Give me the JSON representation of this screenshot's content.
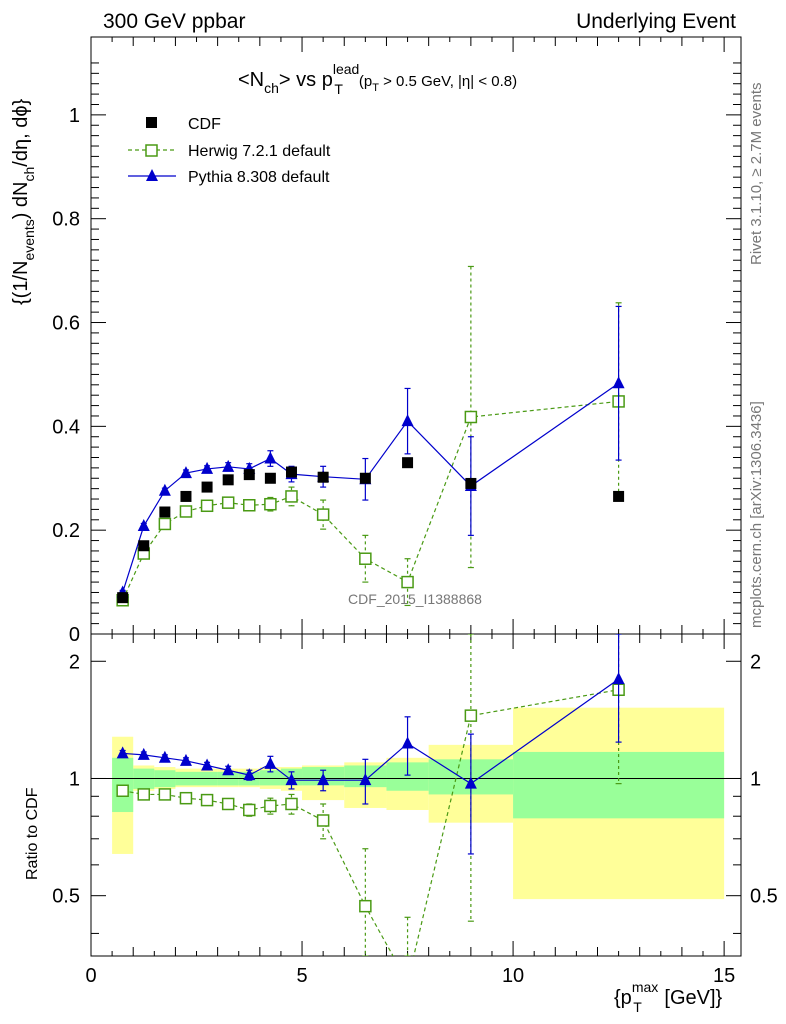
{
  "header": {
    "left": "300 GeV ppbar",
    "right": "Underlying Event"
  },
  "side_labels": {
    "rivet": "Rivet 3.1.10, ≥ 2.7M events",
    "mcplots": "mcplots.cern.ch [arXiv:1306.3436]"
  },
  "watermark": "CDF_2015_I1388868",
  "title": {
    "prefix": "<N",
    "ch_sub": "ch",
    "vs": "> vs p",
    "sup": "lead",
    "sub": "T",
    "cut_open": "(p",
    "cut_sub": "T",
    "cut_rest": " > 0.5 GeV, |η| < 0.8)"
  },
  "ylabel_main": {
    "p1": "{(1/N",
    "s1": "events",
    "p2": ") dN",
    "s2": "ch",
    "p3": "/dη, dϕ}"
  },
  "ylabel_ratio": "Ratio to CDF",
  "xlabel": {
    "p1": "{p",
    "sup": "max",
    "sub": "T",
    "p2": " [GeV]}"
  },
  "chart_data": {
    "type": "scatter",
    "x_range": [
      0,
      15.4
    ],
    "x_ticks": [
      0,
      5,
      10,
      15
    ],
    "main": {
      "y_range": [
        0,
        1.15
      ],
      "y_ticks": [
        0.2,
        0.4,
        0.6,
        0.8,
        1
      ]
    },
    "ratio": {
      "y_range": [
        0.35,
        2.35
      ],
      "y_ticks": [
        0.5,
        1,
        2
      ],
      "reference_line": 1
    },
    "legend": {
      "position": "top-left"
    },
    "series": [
      {
        "name": "CDF",
        "color": "#000000",
        "marker": "filled-square",
        "line": "none",
        "x": [
          0.75,
          1.25,
          1.75,
          2.25,
          2.75,
          3.25,
          3.75,
          4.25,
          4.75,
          5.5,
          6.5,
          7.5,
          9.0,
          12.5
        ],
        "y": [
          0.07,
          0.17,
          0.235,
          0.265,
          0.283,
          0.297,
          0.307,
          0.3,
          0.312,
          0.302,
          0.3,
          0.33,
          0.29,
          0.265
        ]
      },
      {
        "name": "Herwig 7.2.1 default",
        "color": "#4a9a14",
        "marker": "open-square",
        "line": "dashed",
        "x": [
          0.75,
          1.25,
          1.75,
          2.25,
          2.75,
          3.25,
          3.75,
          4.25,
          4.75,
          5.5,
          6.5,
          7.5,
          9.0,
          12.5
        ],
        "y": [
          0.065,
          0.155,
          0.212,
          0.236,
          0.247,
          0.253,
          0.248,
          0.25,
          0.265,
          0.23,
          0.145,
          0.1,
          0.418,
          0.448
        ],
        "err": [
          0.005,
          0.006,
          0.006,
          0.006,
          0.006,
          0.008,
          0.01,
          0.013,
          0.018,
          0.028,
          0.045,
          0.045,
          0.29,
          0.19
        ],
        "ratio": [
          0.93,
          0.91,
          0.91,
          0.89,
          0.88,
          0.86,
          0.83,
          0.85,
          0.86,
          0.78,
          0.47,
          0.3,
          1.45,
          1.69
        ],
        "ratio_err": [
          0.02,
          0.02,
          0.02,
          0.02,
          0.02,
          0.025,
          0.03,
          0.04,
          0.05,
          0.08,
          0.19,
          0.14,
          1.02,
          0.72
        ]
      },
      {
        "name": "Pythia 8.308 default",
        "color": "#0000cc",
        "marker": "filled-triangle",
        "line": "solid",
        "x": [
          0.75,
          1.25,
          1.75,
          2.25,
          2.75,
          3.25,
          3.75,
          4.25,
          4.75,
          5.5,
          6.5,
          7.5,
          9.0,
          12.5
        ],
        "y": [
          0.08,
          0.208,
          0.276,
          0.31,
          0.318,
          0.322,
          0.318,
          0.338,
          0.308,
          0.303,
          0.298,
          0.41,
          0.285,
          0.483
        ],
        "err": [
          0.004,
          0.005,
          0.005,
          0.006,
          0.006,
          0.008,
          0.01,
          0.015,
          0.015,
          0.02,
          0.04,
          0.063,
          0.095,
          0.148
        ],
        "ratio": [
          1.16,
          1.15,
          1.13,
          1.11,
          1.08,
          1.05,
          1.02,
          1.09,
          0.99,
          0.99,
          0.99,
          1.23,
          0.97,
          1.8
        ],
        "ratio_err": [
          0.02,
          0.02,
          0.02,
          0.02,
          0.02,
          0.025,
          0.03,
          0.05,
          0.05,
          0.06,
          0.13,
          0.21,
          0.33,
          0.56
        ]
      }
    ],
    "uncertainty_bands": {
      "x_edges": [
        0.5,
        1.0,
        1.5,
        2.0,
        2.5,
        3.0,
        3.5,
        4.0,
        4.5,
        5.0,
        6.0,
        7.0,
        8.0,
        10.0,
        15.0
      ],
      "green_lo": [
        0.82,
        0.94,
        0.95,
        0.96,
        0.96,
        0.96,
        0.96,
        0.96,
        0.96,
        0.96,
        0.95,
        0.93,
        0.91,
        0.79
      ],
      "green_hi": [
        1.13,
        1.06,
        1.05,
        1.04,
        1.04,
        1.04,
        1.04,
        1.05,
        1.06,
        1.07,
        1.08,
        1.1,
        1.12,
        1.17
      ],
      "yellow_lo": [
        0.64,
        0.93,
        0.94,
        0.95,
        0.95,
        0.95,
        0.95,
        0.94,
        0.93,
        0.88,
        0.84,
        0.83,
        0.77,
        0.49
      ],
      "yellow_hi": [
        1.28,
        1.08,
        1.07,
        1.06,
        1.06,
        1.06,
        1.06,
        1.07,
        1.07,
        1.08,
        1.1,
        1.13,
        1.22,
        1.52
      ]
    }
  }
}
